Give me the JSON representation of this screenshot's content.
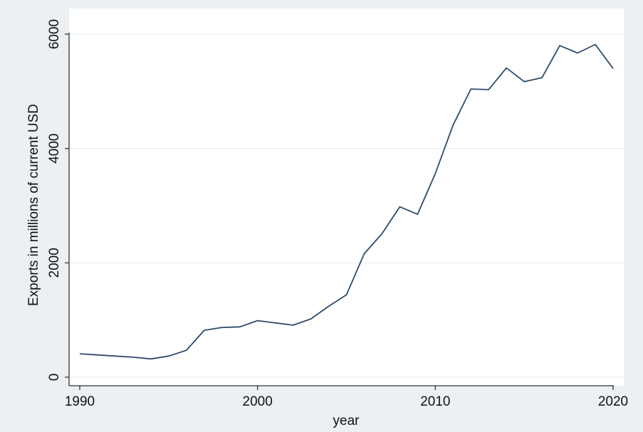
{
  "chart_data": {
    "type": "line",
    "title": "",
    "xlabel": "year",
    "ylabel": "Exports in millions of current USD",
    "xlim": [
      1990,
      2020
    ],
    "ylim": [
      0,
      6000
    ],
    "x_ticks": [
      1990,
      2000,
      2010,
      2020
    ],
    "y_ticks": [
      0,
      2000,
      4000,
      6000
    ],
    "grid": true,
    "legend": "none",
    "series": [
      {
        "x": [
          1990,
          1991,
          1992,
          1993,
          1994,
          1995,
          1996,
          1997,
          1998,
          1999,
          2000,
          2001,
          2002,
          2003,
          2004,
          2005,
          2006,
          2007,
          2008,
          2009,
          2010,
          2011,
          2012,
          2013,
          2014,
          2015,
          2016,
          2017,
          2018,
          2019,
          2020
        ],
        "values": [
          410,
          390,
          370,
          350,
          320,
          370,
          470,
          820,
          870,
          880,
          990,
          950,
          910,
          1020,
          1240,
          1440,
          2160,
          2510,
          2980,
          2850,
          3560,
          4410,
          5040,
          5030,
          5410,
          5170,
          5240,
          5800,
          5670,
          5820,
          5400
        ]
      }
    ]
  },
  "colors": {
    "background": "#eaf0f4",
    "plot_area": "#ffffff",
    "line": "#2d4b6a",
    "grid": "#e8edf1",
    "axis": "#333333",
    "text": "#111111"
  }
}
